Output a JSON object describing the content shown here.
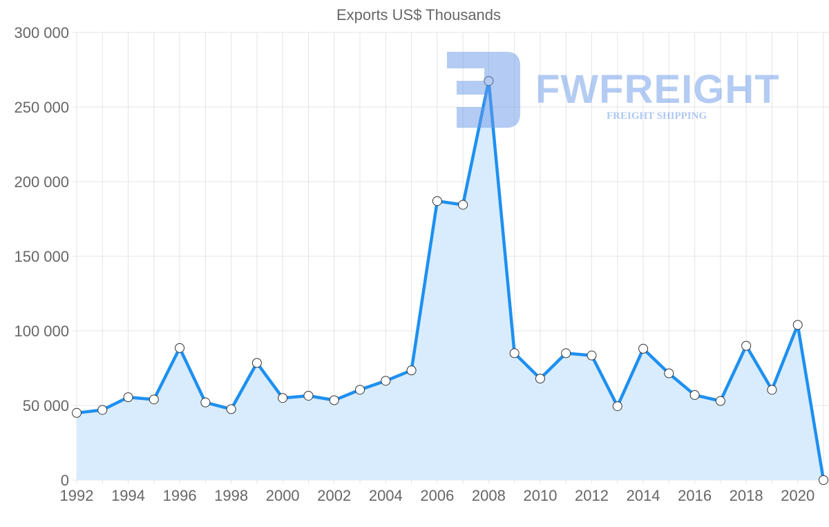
{
  "chart_data": {
    "type": "area",
    "title": "Exports US$ Thousands",
    "xlabel": "",
    "ylabel": "",
    "ylim": [
      0,
      300000
    ],
    "yticks": [
      0,
      50000,
      100000,
      150000,
      200000,
      250000,
      300000
    ],
    "ytick_labels": [
      "0",
      "50 000",
      "100 000",
      "150 000",
      "200 000",
      "250 000",
      "300 000"
    ],
    "xtick_labels": [
      "1992",
      "1994",
      "1996",
      "1998",
      "2000",
      "2002",
      "2004",
      "2006",
      "2008",
      "2010",
      "2012",
      "2014",
      "2016",
      "2018",
      "2020"
    ],
    "grid": true,
    "series": [
      {
        "name": "Exports US$ Thousands",
        "color": "#1e90f0",
        "fill": "#d9ecfd",
        "x": [
          1992,
          1993,
          1994,
          1995,
          1996,
          1997,
          1998,
          1999,
          2000,
          2001,
          2002,
          2003,
          2004,
          2005,
          2006,
          2007,
          2008,
          2009,
          2010,
          2011,
          2012,
          2013,
          2014,
          2015,
          2016,
          2017,
          2018,
          2019,
          2020,
          2021
        ],
        "values": [
          45000,
          47000,
          55500,
          54000,
          88500,
          52000,
          47500,
          78500,
          55000,
          56500,
          53500,
          60500,
          66500,
          73500,
          187000,
          184500,
          267500,
          85000,
          68000,
          85000,
          83500,
          49500,
          88000,
          71500,
          57000,
          53000,
          90000,
          60500,
          104000,
          0
        ]
      }
    ]
  },
  "watermark": {
    "brand": "FWFREIGHT",
    "tagline": "FREIGHT SHIPPING"
  }
}
